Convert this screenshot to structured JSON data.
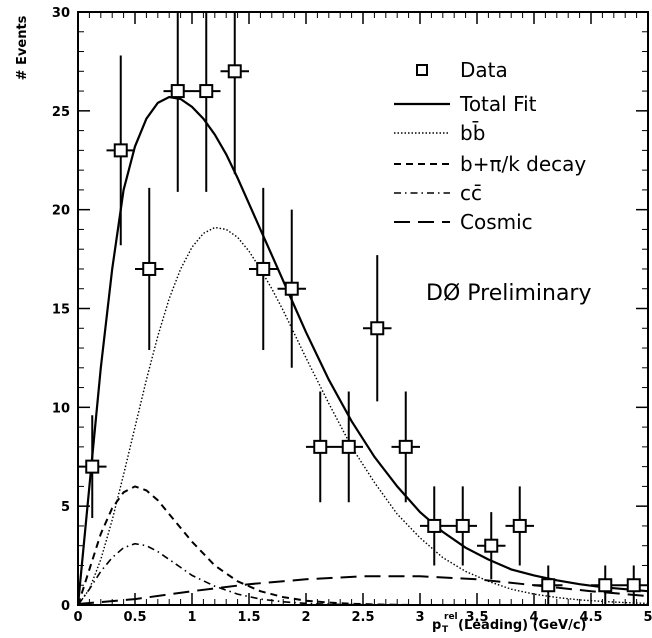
{
  "chart_data": {
    "type": "scatter",
    "ylabel": "# Events",
    "xlabel_main": "p",
    "xlabel_sub": "T",
    "xlabel_sup": "rel",
    "xlabel_rest": "(Leading) (GeV/c)",
    "xlim": [
      0,
      5
    ],
    "ylim": [
      0,
      30
    ],
    "x_ticks": [
      "0",
      "0.5",
      "1",
      "1.5",
      "2",
      "2.5",
      "3",
      "3.5",
      "4",
      "4.5",
      "5"
    ],
    "y_ticks": [
      "0",
      "5",
      "10",
      "15",
      "20",
      "25",
      "30"
    ],
    "annotation": "DØ Preliminary",
    "legend": [
      {
        "label": "Data",
        "style": "marker"
      },
      {
        "label": "Total Fit",
        "style": "solid"
      },
      {
        "label": "bb̄",
        "style": "dotted"
      },
      {
        "label": "b+π/k decay",
        "style": "dashed"
      },
      {
        "label": "cc̄",
        "style": "dashdot"
      },
      {
        "label": "Cosmic",
        "style": "longdash"
      }
    ],
    "data_points": [
      {
        "x": 0.125,
        "y": 7,
        "err": 2.6
      },
      {
        "x": 0.375,
        "y": 23,
        "err": 4.8
      },
      {
        "x": 0.625,
        "y": 17,
        "err": 4.1
      },
      {
        "x": 0.875,
        "y": 26,
        "err": 5.1
      },
      {
        "x": 1.125,
        "y": 26,
        "err": 5.1
      },
      {
        "x": 1.375,
        "y": 27,
        "err": 5.2
      },
      {
        "x": 1.625,
        "y": 17,
        "err": 4.1
      },
      {
        "x": 1.875,
        "y": 16,
        "err": 4.0
      },
      {
        "x": 2.125,
        "y": 8,
        "err": 2.8
      },
      {
        "x": 2.375,
        "y": 8,
        "err": 2.8
      },
      {
        "x": 2.625,
        "y": 14,
        "err": 3.7
      },
      {
        "x": 2.875,
        "y": 8,
        "err": 2.8
      },
      {
        "x": 3.125,
        "y": 4,
        "err": 2.0
      },
      {
        "x": 3.375,
        "y": 4,
        "err": 2.0
      },
      {
        "x": 3.625,
        "y": 3,
        "err": 1.7
      },
      {
        "x": 3.875,
        "y": 4,
        "err": 2.0
      },
      {
        "x": 4.125,
        "y": 1,
        "err": 1.0
      },
      {
        "x": 4.625,
        "y": 1,
        "err": 1.0
      },
      {
        "x": 4.875,
        "y": 1,
        "err": 1.0
      }
    ],
    "curves": [
      {
        "name": "Total Fit",
        "style": "solid",
        "x": [
          0,
          0.1,
          0.2,
          0.3,
          0.4,
          0.5,
          0.6,
          0.7,
          0.8,
          0.9,
          1.0,
          1.1,
          1.2,
          1.3,
          1.4,
          1.5,
          1.6,
          1.7,
          1.8,
          1.9,
          2.0,
          2.2,
          2.4,
          2.6,
          2.8,
          3.0,
          3.2,
          3.4,
          3.6,
          3.8,
          4.0,
          4.2,
          4.4,
          4.6,
          4.8,
          5.0
        ],
        "y": [
          0,
          6,
          12,
          17,
          21,
          23.2,
          24.6,
          25.4,
          25.7,
          25.6,
          25.2,
          24.6,
          23.8,
          22.8,
          21.6,
          20.3,
          19.0,
          17.7,
          16.4,
          15.1,
          13.8,
          11.4,
          9.3,
          7.5,
          6.0,
          4.7,
          3.7,
          2.9,
          2.3,
          1.8,
          1.5,
          1.25,
          1.05,
          0.9,
          0.8,
          0.7
        ]
      },
      {
        "name": "bb̄",
        "style": "dotted",
        "x": [
          0,
          0.1,
          0.2,
          0.3,
          0.4,
          0.5,
          0.6,
          0.7,
          0.8,
          0.9,
          1.0,
          1.1,
          1.2,
          1.3,
          1.4,
          1.5,
          1.6,
          1.7,
          1.8,
          1.9,
          2.0,
          2.2,
          2.4,
          2.6,
          2.8,
          3.0,
          3.2,
          3.4,
          3.6,
          3.8,
          4.0,
          4.2,
          4.4,
          4.6,
          4.8,
          5.0
        ],
        "y": [
          0,
          0.8,
          2.3,
          4.3,
          6.6,
          9.0,
          11.4,
          13.6,
          15.5,
          17.0,
          18.1,
          18.8,
          19.1,
          19.0,
          18.6,
          17.9,
          17.0,
          16.0,
          14.9,
          13.7,
          12.5,
          10.2,
          8.0,
          6.2,
          4.6,
          3.4,
          2.4,
          1.7,
          1.2,
          0.8,
          0.55,
          0.38,
          0.26,
          0.18,
          0.12,
          0.08
        ]
      },
      {
        "name": "b+π/k decay",
        "style": "dashed",
        "x": [
          0,
          0.1,
          0.2,
          0.3,
          0.4,
          0.5,
          0.6,
          0.7,
          0.8,
          0.9,
          1.0,
          1.1,
          1.2,
          1.4,
          1.6,
          1.8,
          2.0,
          2.2,
          2.4,
          2.6,
          2.8,
          3.0
        ],
        "y": [
          0,
          1.8,
          3.6,
          4.9,
          5.7,
          6.0,
          5.8,
          5.3,
          4.6,
          3.9,
          3.2,
          2.6,
          2.0,
          1.2,
          0.7,
          0.4,
          0.22,
          0.12,
          0.06,
          0.03,
          0.01,
          0
        ]
      },
      {
        "name": "cc̄",
        "style": "dashdot",
        "x": [
          0,
          0.1,
          0.2,
          0.3,
          0.4,
          0.5,
          0.6,
          0.7,
          0.8,
          0.9,
          1.0,
          1.2,
          1.4,
          1.6,
          1.8,
          2.0,
          2.2,
          2.4,
          2.6,
          2.8,
          3.0
        ],
        "y": [
          0,
          0.8,
          1.7,
          2.4,
          2.9,
          3.1,
          3.0,
          2.7,
          2.3,
          1.9,
          1.5,
          0.95,
          0.55,
          0.3,
          0.16,
          0.08,
          0.04,
          0.02,
          0.01,
          0,
          0
        ]
      },
      {
        "name": "Cosmic",
        "style": "longdash",
        "x": [
          0,
          0.5,
          1.0,
          1.5,
          2.0,
          2.5,
          3.0,
          3.5,
          4.0,
          4.5,
          5.0
        ],
        "y": [
          0.05,
          0.3,
          0.7,
          1.05,
          1.3,
          1.45,
          1.45,
          1.3,
          1.0,
          0.7,
          0.45
        ]
      }
    ]
  }
}
